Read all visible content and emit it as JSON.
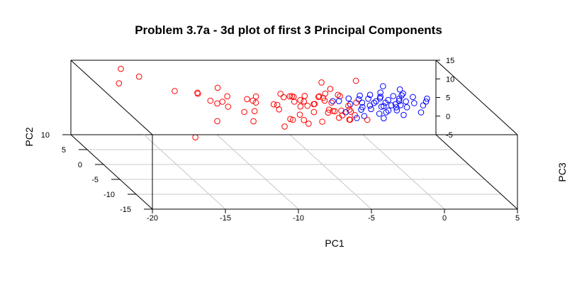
{
  "chart_data": {
    "type": "scatter",
    "title": "Problem 3.7a - 3d plot of first 3 Principal Components",
    "xlabel": "PC1",
    "ylabel": "PC2",
    "zlabel": "PC3",
    "xlim": [
      -20,
      5
    ],
    "ylim": [
      -15,
      10
    ],
    "zlim": [
      -5,
      15
    ],
    "x_ticks": [
      -20,
      -15,
      -10,
      -5,
      0,
      5
    ],
    "y_ticks": [
      -15,
      -10,
      -5,
      0,
      5,
      10
    ],
    "z_ticks": [
      -5,
      0,
      5,
      10,
      15
    ],
    "x_tick_labels": [
      "-20",
      "-15",
      "-10",
      "-5",
      "0",
      "5"
    ],
    "y_tick_labels": [
      "-15",
      "-10",
      "-5",
      "0",
      "5",
      "10"
    ],
    "z_tick_labels": [
      "-5",
      "0",
      "5",
      "10",
      "15"
    ],
    "grid": true,
    "legend": "none",
    "marker": "open-circle",
    "series": [
      {
        "color": "#ff0000",
        "points": [
          [
            -17.6,
            6.0,
            12.0
          ],
          [
            -16.8,
            9.0,
            13.5
          ],
          [
            -16.0,
            7.0,
            13.0
          ],
          [
            -14.6,
            -4.0,
            5.5
          ],
          [
            -14.5,
            2.8,
            12.5
          ],
          [
            -13.2,
            1.5,
            12.8
          ],
          [
            -12.7,
            -2.2,
            8.4
          ],
          [
            -13.1,
            2.1,
            12.6
          ],
          [
            -12.1,
            0.5,
            11.0
          ],
          [
            -12.5,
            0.8,
            11.5
          ],
          [
            -11.4,
            3.5,
            12.8
          ],
          [
            -11.7,
            0.7,
            11.3
          ],
          [
            -11.1,
            1.9,
            11.8
          ],
          [
            -11.6,
            -0.6,
            11.0
          ],
          [
            -10.6,
            -1.1,
            10.0
          ],
          [
            -10.4,
            -3.0,
            9.0
          ],
          [
            -9.5,
            0.3,
            11.4
          ],
          [
            -9.9,
            1.2,
            11.6
          ],
          [
            -9.6,
            0.8,
            11.5
          ],
          [
            -8.6,
            -4.5,
            8.8
          ],
          [
            -7.7,
            -3.0,
            9.4
          ],
          [
            -7.9,
            -3.1,
            9.7
          ],
          [
            -9.2,
            1.6,
            12.0
          ],
          [
            -8.2,
            -1.0,
            10.6
          ],
          [
            -8.3,
            0.2,
            11.0
          ],
          [
            -6.8,
            2.0,
            11.7
          ],
          [
            -6.1,
            0.8,
            11.3
          ],
          [
            -7.0,
            -2.0,
            10.0
          ],
          [
            -6.9,
            -2.8,
            9.2
          ],
          [
            -6.3,
            1.0,
            11.5
          ],
          [
            -6.8,
            -3.8,
            9.0
          ],
          [
            -5.9,
            -1.4,
            10.2
          ],
          [
            -5.5,
            0.2,
            11.1
          ],
          [
            -5.0,
            -1.7,
            10.3
          ],
          [
            -6.1,
            -0.3,
            11.0
          ],
          [
            -4.5,
            -2.8,
            9.8
          ],
          [
            -4.6,
            -1.4,
            10.5
          ],
          [
            -4.5,
            -1.5,
            10.5
          ],
          [
            -3.5,
            2.0,
            12.1
          ],
          [
            -4.7,
            0.7,
            11.6
          ],
          [
            -4.2,
            -2.5,
            10.2
          ],
          [
            -3.4,
            -1.1,
            10.6
          ],
          [
            -4.8,
            1.9,
            11.8
          ],
          [
            -6.6,
            1.7,
            11.8
          ],
          [
            -3.4,
            -1.5,
            10.4
          ],
          [
            -1.8,
            4.1,
            14.2
          ],
          [
            -4.3,
            0.4,
            11.3
          ],
          [
            -4.9,
            1.7,
            11.8
          ],
          [
            -6.6,
            -0.4,
            10.9
          ],
          [
            -6.7,
            1.8,
            11.9
          ],
          [
            -4.0,
            4.8,
            13.2
          ],
          [
            -3.8,
            3.0,
            12.9
          ],
          [
            -4.3,
            2.3,
            12.2
          ],
          [
            -4.6,
            1.6,
            11.6
          ],
          [
            -3.4,
            1.8,
            11.9
          ],
          [
            -3.3,
            -0.3,
            11.0
          ],
          [
            -4.8,
            -1.1,
            10.6
          ],
          [
            -4.0,
            -1.3,
            10.5
          ],
          [
            -2.6,
            0.4,
            11.3
          ],
          [
            -7.3,
            2.6,
            11.9
          ],
          [
            -5.8,
            -3.5,
            9.3
          ],
          [
            -3.9,
            -3.3,
            9.7
          ],
          [
            -3.3,
            -2.3,
            10.1
          ],
          [
            -3.8,
            -3.1,
            9.5
          ],
          [
            -5.6,
            0.0,
            11.2
          ],
          [
            -5.8,
            1.9,
            11.9
          ],
          [
            -6.8,
            0.6,
            11.4
          ],
          [
            -2.6,
            -3.0,
            9.4
          ],
          [
            -9.9,
            -1.1,
            10.2
          ],
          [
            -8.1,
            0.0,
            11.0
          ],
          [
            -7.3,
            1.6,
            11.8
          ]
        ]
      },
      {
        "color": "#0000ff",
        "points": [
          [
            -0.1,
            3.4,
            13.3
          ],
          [
            0.9,
            2.7,
            13.0
          ],
          [
            -0.7,
            1.5,
            12.0
          ],
          [
            1.3,
            0.1,
            11.4
          ],
          [
            -0.4,
            -0.5,
            11.3
          ],
          [
            0.8,
            0.4,
            11.6
          ],
          [
            0.5,
            1.1,
            11.8
          ],
          [
            -0.8,
            -1.4,
            10.6
          ],
          [
            -1.9,
            -1.0,
            10.7
          ],
          [
            0.0,
            0.0,
            11.2
          ],
          [
            -0.9,
            -0.4,
            11.0
          ],
          [
            -1.2,
            0.6,
            11.5
          ],
          [
            -2.0,
            2.0,
            11.9
          ],
          [
            -1.6,
            1.2,
            11.7
          ],
          [
            -2.2,
            0.4,
            11.3
          ],
          [
            -2.6,
            -1.1,
            10.6
          ],
          [
            -3.1,
            0.0,
            11.2
          ],
          [
            -3.7,
            0.8,
            11.4
          ],
          [
            -3.8,
            -1.7,
            10.4
          ],
          [
            -4.1,
            0.9,
            11.3
          ],
          [
            -2.7,
            -2.5,
            10.0
          ],
          [
            -3.3,
            -2.9,
            9.8
          ],
          [
            -1.5,
            -3.1,
            9.9
          ],
          [
            -1.0,
            -1.6,
            10.3
          ],
          [
            -0.2,
            -1.3,
            10.6
          ],
          [
            0.6,
            -0.8,
            11.0
          ],
          [
            1.3,
            -2.0,
            10.6
          ],
          [
            2.2,
            0.5,
            11.5
          ],
          [
            2.4,
            1.1,
            11.8
          ],
          [
            1.0,
            2.2,
            12.3
          ],
          [
            0.2,
            1.6,
            12.1
          ],
          [
            -0.5,
            2.4,
            12.4
          ],
          [
            -1.3,
            2.0,
            12.1
          ],
          [
            -2.3,
            1.0,
            11.7
          ],
          [
            -1.8,
            -0.2,
            11.0
          ],
          [
            -0.6,
            0.4,
            11.3
          ],
          [
            0.3,
            -0.2,
            11.1
          ],
          [
            -1.6,
            -2.2,
            10.4
          ],
          [
            -2.9,
            1.4,
            11.6
          ],
          [
            0.8,
            1.7,
            12.2
          ],
          [
            0.0,
            -2.5,
            10.3
          ],
          [
            1.8,
            -0.4,
            11.2
          ],
          [
            -0.3,
            0.9,
            11.6
          ],
          [
            -1.1,
            -0.6,
            11.0
          ],
          [
            -2.4,
            -0.6,
            10.9
          ],
          [
            0.4,
            0.7,
            11.5
          ],
          [
            -0.8,
            1.2,
            11.8
          ],
          [
            1.5,
            1.4,
            12.0
          ],
          [
            -1.4,
            0.3,
            11.3
          ],
          [
            -0.1,
            -0.7,
            10.9
          ]
        ]
      }
    ]
  }
}
